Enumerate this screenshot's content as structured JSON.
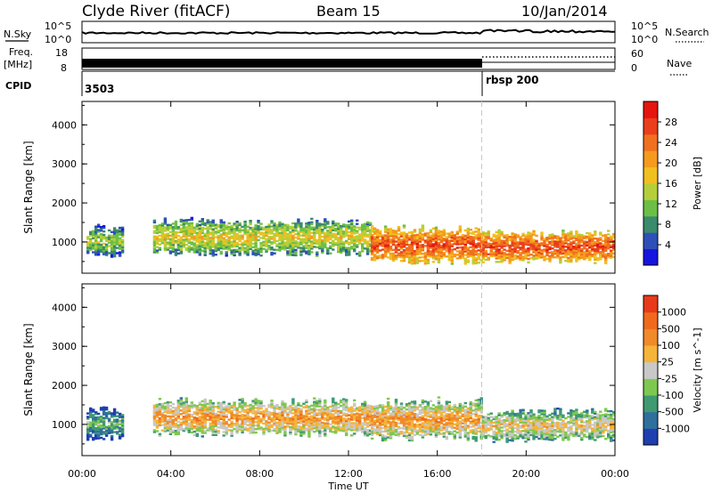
{
  "header": {
    "station": "Clyde River (fitACF)",
    "beam": "Beam 15",
    "date": "10/Jan/2014"
  },
  "noise_panel": {
    "left_label": "N.Sky",
    "right_label": "N.Search",
    "left_ticks": [
      "10^5",
      "10^0"
    ],
    "right_ticks": [
      "10^5",
      "10^0"
    ]
  },
  "freq_panel": {
    "left_label_1": "Freq.",
    "left_label_2": "[MHz]",
    "right_label": "Nave",
    "left_ticks": [
      "18",
      "8"
    ],
    "right_ticks": [
      "60",
      "0"
    ]
  },
  "cpid_panel": {
    "label": "CPID",
    "segments": [
      {
        "start_hour": 0,
        "text": "3503"
      },
      {
        "start_hour": 18,
        "text": "rbsp 200"
      }
    ]
  },
  "time_axis": {
    "xlabel": "Time UT",
    "ticks": [
      "00:00",
      "04:00",
      "08:00",
      "12:00",
      "16:00",
      "20:00",
      "00:00"
    ]
  },
  "chart_data": [
    {
      "type": "heatmap",
      "title": "Power",
      "xlabel": "",
      "ylabel": "Slant Range [km]",
      "x_range_hours": [
        0,
        24
      ],
      "ylim": [
        200,
        4600
      ],
      "y_ticks": [
        "1000",
        "2000",
        "3000",
        "4000"
      ],
      "colorbar": {
        "label": "Power [dB]",
        "ticks": [
          "4",
          "8",
          "12",
          "16",
          "20",
          "24",
          "28"
        ],
        "colors": [
          "#1515e0",
          "#2f4fb8",
          "#3a8a6c",
          "#6cbf46",
          "#b5cf3b",
          "#f0c020",
          "#f59a1e",
          "#f07020",
          "#ea3e1c",
          "#e6140f"
        ]
      },
      "echo_regions": [
        {
          "start_hour": 0.2,
          "end_hour": 1.8,
          "center_km": 1000,
          "half_width_km": 350,
          "level": 4
        },
        {
          "start_hour": 3.2,
          "end_hour": 13.0,
          "center_km": 1100,
          "half_width_km": 400,
          "level": 5
        },
        {
          "start_hour": 13.0,
          "end_hour": 18.0,
          "center_km": 900,
          "half_width_km": 400,
          "level": 8
        },
        {
          "start_hour": 18.0,
          "end_hour": 24.0,
          "center_km": 850,
          "half_width_km": 350,
          "level": 8
        }
      ]
    },
    {
      "type": "heatmap",
      "title": "Velocity",
      "xlabel": "Time UT",
      "ylabel": "Slant Range [km]",
      "x_range_hours": [
        0,
        24
      ],
      "ylim": [
        200,
        4600
      ],
      "y_ticks": [
        "1000",
        "2000",
        "3000",
        "4000"
      ],
      "colorbar": {
        "label": "Velocity [m s^-1]",
        "ticks": [
          "1000",
          "500",
          "100",
          "25",
          "-25",
          "-100",
          "-500",
          "-1000"
        ],
        "colors": [
          "#1f3fb0",
          "#2f6f9c",
          "#3f9a72",
          "#7ec850",
          "#c8c8c8",
          "#f5b43a",
          "#f08a2a",
          "#f06a1e",
          "#e83a1a"
        ]
      },
      "echo_regions": [
        {
          "start_hour": 0.2,
          "end_hour": 1.8,
          "center_km": 1000,
          "half_width_km": 350,
          "level": 3
        },
        {
          "start_hour": 3.2,
          "end_hour": 13.0,
          "center_km": 1150,
          "half_width_km": 400,
          "level": 6
        },
        {
          "start_hour": 13.0,
          "end_hour": 18.0,
          "center_km": 1100,
          "half_width_km": 450,
          "level": 6
        },
        {
          "start_hour": 18.0,
          "end_hour": 24.0,
          "center_km": 950,
          "half_width_km": 350,
          "level": 5
        }
      ]
    }
  ]
}
